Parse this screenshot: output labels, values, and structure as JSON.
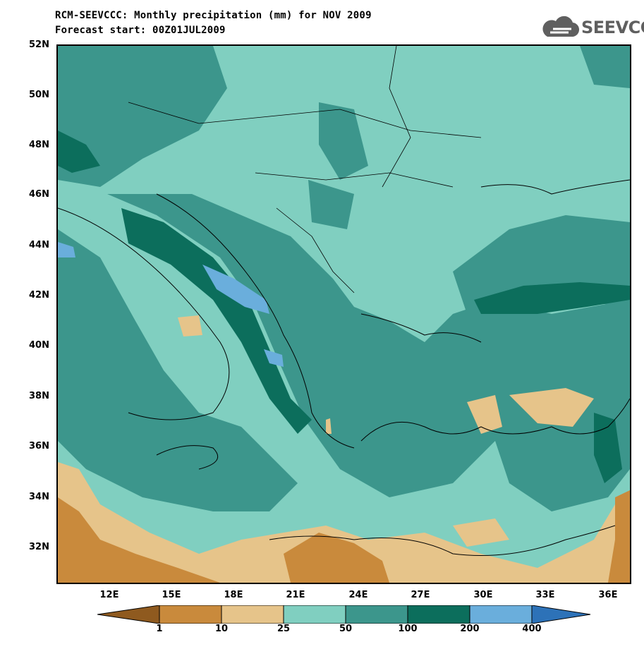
{
  "header": {
    "line1": "RCM-SEEVCCC: Monthly precipitation (mm) for NOV 2009",
    "line2": "Forecast start: 00Z01JUL2009"
  },
  "logo": {
    "text": "SEEVCCC",
    "icon": "cloud-logo-icon",
    "color": "#5f5f5f"
  },
  "map": {
    "lat_labels": [
      "52N",
      "50N",
      "48N",
      "46N",
      "44N",
      "42N",
      "40N",
      "38N",
      "36N",
      "34N",
      "32N"
    ],
    "lon_labels": [
      "12E",
      "15E",
      "18E",
      "21E",
      "24E",
      "27E",
      "30E",
      "33E",
      "36E"
    ]
  },
  "colorbar": {
    "labels": [
      "1",
      "10",
      "25",
      "50",
      "100",
      "200",
      "400"
    ],
    "colors": [
      "#8f5a1f",
      "#c98a3c",
      "#e6c48a",
      "#80cfc0",
      "#3c968c",
      "#0c6e5c",
      "#6aaedc",
      "#2d72b8"
    ]
  }
}
